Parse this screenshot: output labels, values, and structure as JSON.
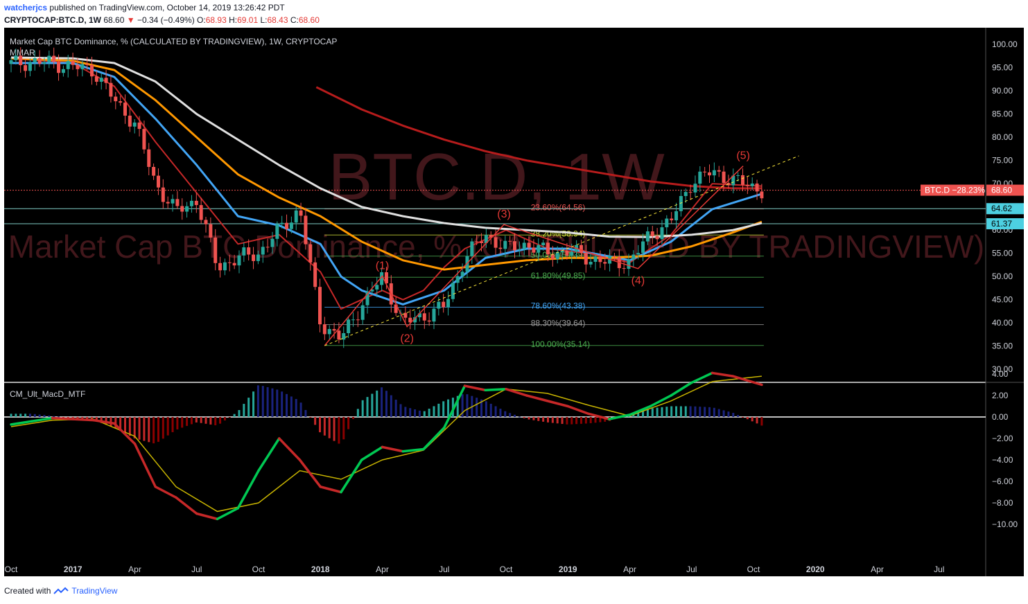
{
  "header": {
    "author": "watcherjcs",
    "published_text": "published on TradingView.com, October 14, 2019 13:26:42 PDT",
    "symbol": "CRYPTOCAP:BTC.D, 1W",
    "last": "68.60",
    "change": "−0.34 (−0.49%)",
    "open_label": "O:",
    "open": "68.93",
    "high_label": "H:",
    "high": "69.01",
    "low_label": "L:",
    "low": "68.43",
    "close_label": "C:",
    "close": "68.60"
  },
  "footer": {
    "created_with": "Created with",
    "brand": "TradingView"
  },
  "colors": {
    "background": "#000000",
    "up": "#26a69a",
    "down": "#ef5350",
    "ema_red": "#c62828",
    "ema_blue": "#42a5f5",
    "ema_orange": "#ff9800",
    "ema_white": "#e0e0e0",
    "ema_darkred": "#b71c1c",
    "macd_green": "#00c853",
    "macd_red": "#c62828",
    "signal": "#c8b400"
  },
  "chart_data": [
    {
      "type": "line",
      "title": "Market Cap BTC Dominance, % (CALCULATED BY TRADINGVIEW), 1W, CRYPTOCAP",
      "subtitle": "MMAR",
      "watermark_large": "BTC.D, 1W",
      "watermark_small": "Market Cap BTC Dominance, % (CALCULATED BY TRADINGVIEW)",
      "x_ticks": [
        "Oct",
        "2017",
        "Apr",
        "Jul",
        "Oct",
        "2018",
        "Apr",
        "Jul",
        "Oct",
        "2019",
        "Apr",
        "Jul",
        "Oct",
        "2020",
        "Apr",
        "Jul"
      ],
      "x_tick_months": [
        0,
        3,
        6,
        9,
        12,
        15,
        18,
        21,
        24,
        27,
        30,
        33,
        36,
        39,
        42,
        45
      ],
      "y_ticks": [
        "100.00",
        "95.00",
        "90.00",
        "85.00",
        "80.00",
        "75.00",
        "70.00",
        "65.00",
        "60.00",
        "55.00",
        "50.00",
        "45.00",
        "40.00",
        "35.00",
        "30.00"
      ],
      "ylim": [
        30,
        100
      ],
      "grid": false,
      "price_series": {
        "name": "BTC.D",
        "x_months": [
          0,
          1,
          2,
          3,
          4,
          5,
          6,
          7,
          8,
          9,
          10,
          11,
          12,
          13,
          14,
          15,
          16,
          17,
          18,
          19,
          20,
          21,
          22,
          23,
          24,
          25,
          26,
          27,
          28,
          29,
          30,
          31,
          32,
          33,
          34,
          35,
          36.4
        ],
        "values": [
          95.8,
          96.3,
          96.0,
          95.2,
          94.5,
          88,
          83,
          70,
          64,
          66.5,
          52,
          54,
          55,
          60,
          64.5,
          40,
          36.5,
          44,
          50,
          40,
          41.5,
          43.5,
          54,
          59,
          56,
          57,
          55,
          55.5,
          54,
          53,
          53.2,
          59,
          62,
          70.5,
          72.5,
          70.8,
          68.6
        ]
      },
      "moving_averages": [
        {
          "color": "red",
          "x_months": [
            0,
            3,
            5,
            7,
            9,
            11,
            13,
            15,
            16,
            18,
            19,
            20,
            21,
            22,
            24,
            26,
            28,
            30,
            32,
            34,
            36.4
          ],
          "values": [
            97,
            96,
            91,
            79,
            68,
            57,
            59,
            51,
            43,
            47,
            45,
            47,
            52,
            56,
            60,
            56,
            55,
            53,
            59,
            70,
            69.5
          ]
        },
        {
          "color": "blue",
          "x_months": [
            0,
            3,
            5,
            7,
            9,
            11,
            13,
            15,
            16,
            17,
            19,
            21,
            23,
            25,
            27,
            30,
            32,
            34,
            36.4
          ],
          "values": [
            96,
            96,
            93,
            84,
            74,
            63,
            61,
            57,
            50,
            47,
            44,
            47,
            54,
            56,
            56,
            53.5,
            57.5,
            64.5,
            67.8
          ]
        },
        {
          "color": "orange",
          "x_months": [
            0,
            3,
            5,
            7,
            9,
            11,
            13,
            15,
            17,
            19,
            21,
            23,
            25,
            27,
            29,
            31,
            33,
            35,
            36.4
          ],
          "values": [
            97,
            96.5,
            94.5,
            88,
            80,
            72,
            67,
            63,
            57.5,
            53.5,
            51.5,
            52.5,
            53.5,
            54,
            54,
            54.5,
            56.5,
            59.5,
            61.8
          ]
        },
        {
          "color": "white",
          "x_months": [
            0,
            3,
            5,
            7,
            9,
            11,
            13,
            15,
            17,
            19,
            21,
            23,
            25,
            27,
            29,
            31,
            33,
            35,
            36.4
          ],
          "values": [
            97.2,
            97,
            96,
            92,
            85,
            79.5,
            74,
            69,
            65,
            63,
            61.5,
            60.5,
            60,
            59.5,
            58.6,
            58.5,
            59,
            60,
            61.5
          ]
        },
        {
          "color": "darkred",
          "x_months": [
            14.8,
            17,
            19,
            21,
            23,
            25,
            27,
            29,
            31,
            33,
            35,
            36.4
          ],
          "values": [
            90.8,
            86,
            82.5,
            79.5,
            77,
            75,
            73.5,
            72,
            70.5,
            69.5,
            69,
            69
          ]
        }
      ],
      "elliott_waves": {
        "labels": [
          "(1)",
          "(2)",
          "(3)",
          "(4)",
          "(5)"
        ],
        "x_months": [
          15.2,
          18.0,
          19.2,
          23.9,
          30.4,
          35.5
        ],
        "values": [
          35.1,
          50.1,
          39.2,
          61.2,
          51.7,
          73.8
        ]
      },
      "fibonacci": {
        "labels": [
          "23.60%(64.56)",
          "38.20%(58.94)",
          "50.00%(54.39)",
          "61.80%(49.85)",
          "78.60%(43.38)",
          "88.30%(39.64)",
          "100.00%(35.14)"
        ],
        "levels": [
          64.56,
          58.94,
          54.39,
          49.85,
          43.38,
          39.64,
          35.14
        ],
        "colors": [
          "#ef5350",
          "#cddc39",
          "#4caf50",
          "#4caf50",
          "#42a5f5",
          "#9e9e9e",
          "#4caf50"
        ]
      },
      "horizontal_levels": [
        {
          "value": 68.6,
          "label": "68.60",
          "note": "BTC.D −28.23%",
          "color": "#ef5350"
        },
        {
          "value": 64.62,
          "label": "64.62",
          "color": "#80cbc4"
        },
        {
          "value": 61.37,
          "label": "61.37",
          "color": "#80cbc4"
        }
      ]
    },
    {
      "type": "bar",
      "title": "CM_Ult_MacD_MTF",
      "y_ticks": [
        "4.00",
        "2.00",
        "0.00",
        "−2.00",
        "−4.00",
        "−6.00",
        "−8.00",
        "−10.00"
      ],
      "ylim": [
        -10.5,
        4.5
      ],
      "macd_line": {
        "x_months": [
          0,
          1,
          2,
          3,
          4,
          5,
          6,
          7,
          8,
          9,
          10,
          11,
          12,
          13,
          14,
          15,
          16,
          17,
          18,
          19,
          20,
          21,
          22,
          23,
          24,
          25,
          26,
          27,
          28,
          29,
          30,
          31,
          32,
          33,
          34,
          35,
          36.4
        ],
        "values": [
          -0.7,
          -0.4,
          -0.1,
          -0.2,
          -0.3,
          -0.6,
          -2.5,
          -6.5,
          -7.5,
          -9,
          -9.5,
          -8.5,
          -5,
          -2,
          -4,
          -6.5,
          -7,
          -4,
          -2.8,
          -3.2,
          -3,
          -1,
          2.9,
          2.5,
          2.6,
          2,
          1.5,
          1,
          0.3,
          -0.2,
          0.2,
          1,
          2,
          3.2,
          4.1,
          3.8,
          3
        ]
      },
      "signal_line": {
        "x_months": [
          0,
          2,
          4,
          6,
          8,
          10,
          12,
          14,
          16,
          18,
          20,
          22,
          24,
          26,
          28,
          30,
          32,
          34,
          36.4
        ],
        "values": [
          -0.9,
          -0.3,
          -0.2,
          -1.8,
          -6.5,
          -8.8,
          -8,
          -5,
          -5.8,
          -4,
          -3.1,
          0.6,
          2.6,
          2.2,
          1.1,
          0.1,
          1.5,
          3.3,
          3.8
        ]
      },
      "histogram": {
        "x_months": [
          0,
          1,
          2,
          3,
          4,
          5,
          6,
          7,
          8,
          9,
          10,
          11,
          12,
          13,
          14,
          15,
          16,
          17,
          18,
          19,
          20,
          21,
          22,
          23,
          24,
          25,
          26,
          27,
          28,
          29,
          30,
          31,
          32,
          33,
          34,
          35,
          36.4
        ],
        "values": [
          0.3,
          0.3,
          0.1,
          -0.1,
          -0.3,
          -1,
          -2,
          -2.5,
          -1.2,
          -0.5,
          -0.8,
          0.5,
          3,
          2.5,
          1.5,
          -1.5,
          -2.6,
          1.5,
          2.8,
          1,
          0.5,
          1.5,
          2.2,
          1.5,
          0.5,
          -0.2,
          -0.5,
          -0.7,
          -0.6,
          -0.4,
          0.3,
          0.8,
          1,
          1,
          0.9,
          0.4,
          -0.8
        ]
      }
    }
  ]
}
